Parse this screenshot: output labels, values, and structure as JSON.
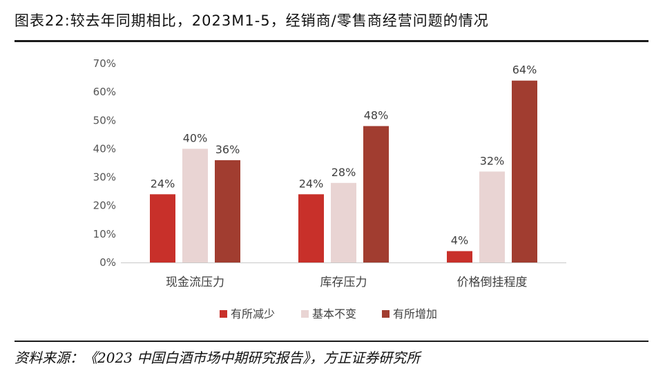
{
  "header": {
    "title": "图表22:较去年同期相比，2023M1-5，经销商/零售商经营问题的情况"
  },
  "footer": {
    "source": "资料来源：《2023 中国白酒市场中期研究报告》，方正证券研究所"
  },
  "chart_data": {
    "type": "bar",
    "categories": [
      "现金流压力",
      "库存压力",
      "价格倒挂程度"
    ],
    "series": [
      {
        "name": "有所减少",
        "values": [
          24,
          24,
          4
        ],
        "color": "#c8302a"
      },
      {
        "name": "基本不变",
        "values": [
          40,
          28,
          32
        ],
        "color": "#e9d4d3"
      },
      {
        "name": "有所增加",
        "values": [
          36,
          48,
          64
        ],
        "color": "#a13d30"
      }
    ],
    "value_suffix": "%",
    "yticks": [
      "0%",
      "10%",
      "20%",
      "30%",
      "40%",
      "50%",
      "60%",
      "70%"
    ],
    "ylim": [
      0,
      70
    ],
    "legend_position": "bottom",
    "title": "",
    "xlabel": "",
    "ylabel": ""
  }
}
